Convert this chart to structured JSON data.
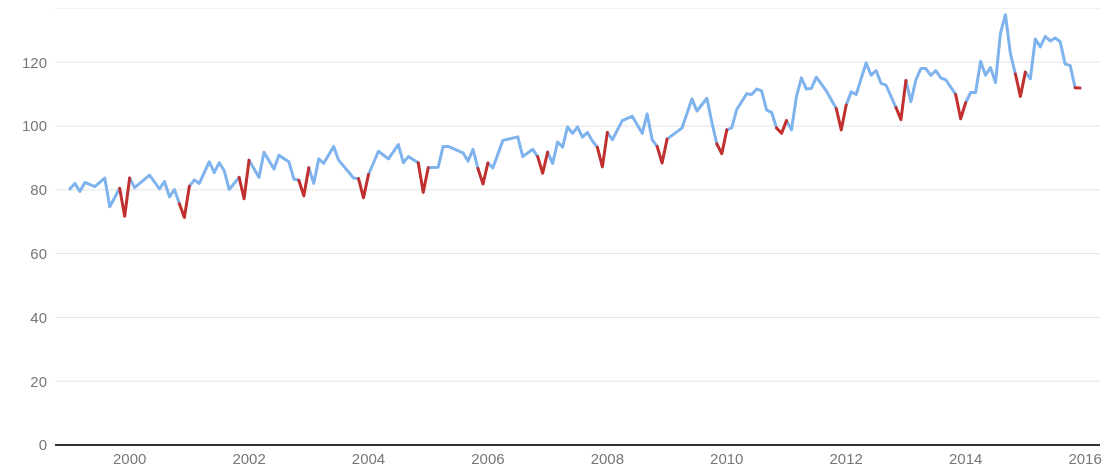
{
  "chart_data": {
    "type": "line",
    "x": [
      "1999-01",
      "1999-02",
      "1999-03",
      "1999-04",
      "1999-06",
      "1999-08",
      "1999-09",
      "1999-11",
      "1999-12",
      "2000-01",
      "2000-02",
      "2000-05",
      "2000-07",
      "2000-08",
      "2000-09",
      "2000-10",
      "2000-11",
      "2000-12",
      "2001-01",
      "2001-02",
      "2001-03",
      "2001-05",
      "2001-06",
      "2001-07",
      "2001-08",
      "2001-09",
      "2001-11",
      "2001-12",
      "2002-01",
      "2002-03",
      "2002-04",
      "2002-06",
      "2002-07",
      "2002-09",
      "2002-10",
      "2002-11",
      "2002-12",
      "2003-01",
      "2003-02",
      "2003-03",
      "2003-04",
      "2003-06",
      "2003-07",
      "2003-10",
      "2003-11",
      "2003-12",
      "2004-01",
      "2004-03",
      "2004-05",
      "2004-07",
      "2004-08",
      "2004-09",
      "2004-11",
      "2004-12",
      "2005-01",
      "2005-03",
      "2005-04",
      "2005-05",
      "2005-08",
      "2005-09",
      "2005-10",
      "2005-11",
      "2005-12",
      "2006-01",
      "2006-02",
      "2006-04",
      "2006-07",
      "2006-08",
      "2006-10",
      "2006-11",
      "2006-12",
      "2007-01",
      "2007-02",
      "2007-03",
      "2007-04",
      "2007-05",
      "2007-06",
      "2007-07",
      "2007-08",
      "2007-09",
      "2007-10",
      "2007-11",
      "2007-12",
      "2008-01",
      "2008-02",
      "2008-04",
      "2008-06",
      "2008-08",
      "2008-09",
      "2008-10",
      "2008-11",
      "2008-12",
      "2009-01",
      "2009-04",
      "2009-06",
      "2009-07",
      "2009-09",
      "2009-10",
      "2009-11",
      "2009-12",
      "2010-01",
      "2010-02",
      "2010-03",
      "2010-05",
      "2010-06",
      "2010-07",
      "2010-08",
      "2010-09",
      "2010-10",
      "2010-11",
      "2010-12",
      "2011-01",
      "2011-02",
      "2011-03",
      "2011-04",
      "2011-05",
      "2011-06",
      "2011-07",
      "2011-09",
      "2011-11",
      "2011-12",
      "2012-01",
      "2012-02",
      "2012-03",
      "2012-05",
      "2012-06",
      "2012-07",
      "2012-08",
      "2012-09",
      "2012-11",
      "2012-12",
      "2013-01",
      "2013-02",
      "2013-03",
      "2013-04",
      "2013-05",
      "2013-06",
      "2013-07",
      "2013-08",
      "2013-09",
      "2013-11",
      "2013-12",
      "2014-01",
      "2014-02",
      "2014-03",
      "2014-04",
      "2014-05",
      "2014-06",
      "2014-07",
      "2014-08",
      "2014-09",
      "2014-10",
      "2014-11",
      "2014-12",
      "2015-01",
      "2015-02",
      "2015-03",
      "2015-04",
      "2015-05",
      "2015-06",
      "2015-07",
      "2015-08",
      "2015-09",
      "2015-10",
      "2015-11",
      "2015-12"
    ],
    "series": [
      {
        "color": "#7fb3ee",
        "values": [
          80.3,
          82,
          79.5,
          82.3,
          81,
          83.7,
          74.7,
          80.5,
          null,
          83.7,
          80.7,
          84.6,
          80.3,
          82.6,
          77.8,
          80.1,
          75.6,
          null,
          81.1,
          83.1,
          82,
          88.8,
          85.4,
          88.5,
          86,
          80.1,
          83.9,
          null,
          89.3,
          83.9,
          91.8,
          86.5,
          90.8,
          88.8,
          83.4,
          83,
          null,
          86.9,
          82,
          89.7,
          88.3,
          93.6,
          89.3,
          83.7,
          83.5,
          null,
          84.8,
          92.1,
          89.7,
          94.2,
          88.5,
          90.4,
          88.5,
          null,
          86.9,
          87.1,
          93.6,
          93.6,
          91.6,
          89,
          92.7,
          86.7,
          null,
          88.4,
          86.9,
          95.5,
          96.6,
          90.4,
          92.7,
          90.4,
          null,
          91.8,
          88.3,
          95,
          93.4,
          99.7,
          97.7,
          99.7,
          96.5,
          98,
          95.3,
          93.3,
          null,
          98,
          95.7,
          101.7,
          103.1,
          97.7,
          103.8,
          95.7,
          93.6,
          null,
          95.9,
          99.4,
          108.5,
          104.7,
          108.7,
          101.2,
          94.4,
          null,
          98.8,
          99.4,
          105.2,
          110.1,
          109.9,
          111.6,
          111,
          105,
          104.3,
          99.4,
          null,
          101.7,
          98.8,
          109.3,
          115.1,
          111.6,
          111.8,
          115.3,
          111,
          105.5,
          null,
          106.6,
          110.7,
          109.9,
          119.8,
          115.9,
          117.4,
          113.4,
          112.8,
          105.8,
          null,
          114.3,
          107.6,
          114.5,
          118,
          118,
          115.9,
          117.4,
          115.1,
          114.5,
          109.9,
          null,
          107.3,
          110.5,
          110.5,
          120.3,
          115.9,
          118.3,
          113.6,
          129.1,
          134.9,
          122.7,
          116.3,
          null,
          116.9,
          114.8,
          127.3,
          124.8,
          128.1,
          126.7,
          127.6,
          126.4,
          119.4,
          119,
          112,
          null
        ]
      },
      {
        "color": "#c0302e",
        "values": [
          null,
          null,
          null,
          null,
          null,
          null,
          null,
          80.5,
          71.7,
          83.7,
          null,
          null,
          null,
          null,
          null,
          null,
          75.6,
          71.3,
          81.1,
          null,
          null,
          null,
          null,
          null,
          null,
          null,
          83.9,
          77.2,
          89.3,
          null,
          null,
          null,
          null,
          null,
          null,
          83,
          78.1,
          86.9,
          null,
          null,
          null,
          null,
          null,
          null,
          83.5,
          77.5,
          84.8,
          null,
          null,
          null,
          null,
          null,
          88.5,
          79.2,
          86.9,
          null,
          null,
          null,
          null,
          null,
          null,
          86.7,
          81.8,
          88.4,
          null,
          null,
          null,
          null,
          null,
          90.4,
          85.2,
          91.8,
          null,
          null,
          null,
          null,
          null,
          null,
          null,
          null,
          null,
          93.3,
          87.2,
          98,
          null,
          null,
          null,
          null,
          null,
          null,
          93.6,
          88.4,
          95.9,
          null,
          null,
          null,
          null,
          null,
          94.4,
          91.3,
          98.8,
          null,
          null,
          null,
          null,
          null,
          null,
          null,
          null,
          99.4,
          97.7,
          101.7,
          null,
          null,
          null,
          null,
          null,
          null,
          null,
          105.5,
          98.8,
          106.6,
          null,
          null,
          null,
          null,
          null,
          null,
          null,
          105.8,
          102,
          114.3,
          null,
          null,
          null,
          null,
          null,
          null,
          null,
          null,
          109.9,
          102.3,
          107.3,
          null,
          null,
          null,
          null,
          null,
          null,
          null,
          null,
          null,
          116.3,
          109.3,
          116.9,
          null,
          null,
          null,
          null,
          null,
          null,
          null,
          null,
          null,
          112,
          111.9
        ]
      }
    ],
    "xlim": [
      "1998-10",
      "2016-04"
    ],
    "xticks": [
      "2000",
      "2002",
      "2004",
      "2006",
      "2008",
      "2010",
      "2012",
      "2014",
      "2016"
    ],
    "ylim": [
      0,
      137
    ],
    "yticks": [
      0,
      20,
      40,
      60,
      80,
      100,
      120
    ],
    "grid": "y",
    "marker": "none",
    "line_style": "solid"
  }
}
